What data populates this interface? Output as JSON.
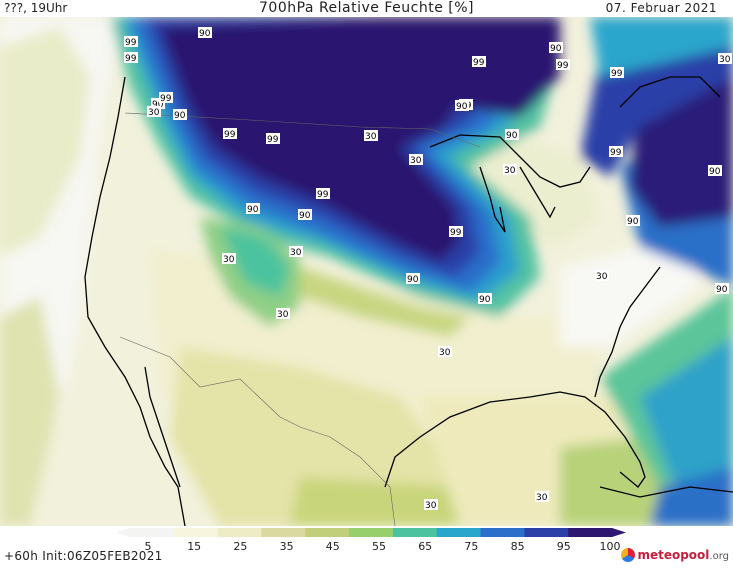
{
  "header": {
    "left": "???, 19Uhr",
    "title": "700hPa Relative Feuchte [%]",
    "right": "07. Februar 2021"
  },
  "footer": {
    "init": "+60h Init:06Z05FEB2021",
    "logo_text": "meteopool",
    "logo_tld": ".org"
  },
  "legend": {
    "ticks": [
      "5",
      "15",
      "25",
      "35",
      "45",
      "55",
      "65",
      "75",
      "85",
      "95",
      "100"
    ],
    "colors": [
      "#f4f4f2",
      "#f7f5dd",
      "#eeecc4",
      "#d9d9a0",
      "#c2cf7a",
      "#97cf6c",
      "#4cc39e",
      "#2aa6cc",
      "#2b6fca",
      "#2a3fa8",
      "#2c1670"
    ]
  },
  "map": {
    "contour_labels": [
      "99",
      "90",
      "90",
      "99",
      "30",
      "30",
      "90",
      "99",
      "99",
      "90",
      "99",
      "30",
      "99",
      "90",
      "99",
      "90",
      "99",
      "99",
      "90",
      "30",
      "30",
      "30",
      "90",
      "90",
      "30",
      "30",
      "30",
      "99",
      "30",
      "30",
      "90",
      "99",
      "90",
      "30",
      "90",
      "90",
      "99"
    ]
  }
}
